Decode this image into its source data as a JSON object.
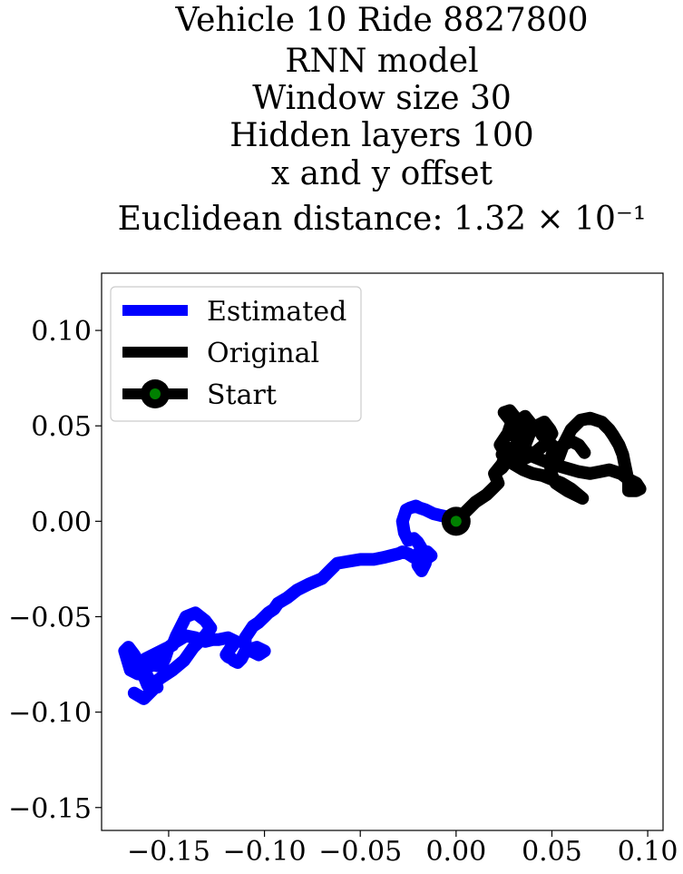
{
  "chart_data": {
    "type": "line",
    "title_lines": [
      "Vehicle 10 Ride 8827800",
      "RNN model",
      "Window size 30",
      "Hidden layers 100",
      "x and y offset",
      "Euclidean distance: 1.32 × 10⁻¹"
    ],
    "xlabel": "",
    "ylabel": "",
    "xlim": [
      -0.185,
      0.108
    ],
    "ylim": [
      -0.162,
      0.13
    ],
    "xticks": [
      -0.15,
      -0.1,
      -0.05,
      0.0,
      0.05,
      0.1
    ],
    "xtick_labels": [
      "−0.15",
      "−0.10",
      "−0.05",
      "0.00",
      "0.05",
      "0.10"
    ],
    "yticks": [
      0.1,
      0.05,
      0.0,
      -0.05,
      -0.1,
      -0.15
    ],
    "ytick_labels": [
      "0.10",
      "0.05",
      "0.00",
      "−0.05",
      "−0.10",
      "−0.15"
    ],
    "grid": false,
    "legend": {
      "placement": "upper-left",
      "entries": [
        {
          "label": "Estimated",
          "color": "#0000ff"
        },
        {
          "label": "Original",
          "color": "#000000"
        },
        {
          "label": "Start",
          "color": "#000000",
          "marker_color": "#008000"
        }
      ]
    },
    "series": [
      {
        "name": "Estimated",
        "color": "#0000ff",
        "x": [
          0.0,
          -0.003,
          -0.008,
          -0.012,
          -0.016,
          -0.019,
          -0.021,
          -0.024,
          -0.026,
          -0.028,
          -0.027,
          -0.025,
          -0.022,
          -0.02,
          -0.017,
          -0.016,
          -0.018,
          -0.02,
          -0.016,
          -0.013,
          -0.015,
          -0.02,
          -0.022,
          -0.025,
          -0.028,
          -0.03,
          -0.034,
          -0.038,
          -0.043,
          -0.05,
          -0.056,
          -0.062,
          -0.065,
          -0.07,
          -0.077,
          -0.083,
          -0.088,
          -0.093,
          -0.095,
          -0.098,
          -0.1,
          -0.103,
          -0.106,
          -0.108,
          -0.11,
          -0.11,
          -0.107,
          -0.103,
          -0.1,
          -0.104,
          -0.11,
          -0.112,
          -0.114,
          -0.116,
          -0.117,
          -0.119,
          -0.12,
          -0.118,
          -0.115,
          -0.119,
          -0.124,
          -0.127,
          -0.131,
          -0.136,
          -0.141,
          -0.146,
          -0.15,
          -0.152,
          -0.154,
          -0.16,
          -0.163,
          -0.161,
          -0.156,
          -0.158,
          -0.154,
          -0.148,
          -0.142,
          -0.137,
          -0.131,
          -0.128,
          -0.131,
          -0.136,
          -0.141,
          -0.146,
          -0.148,
          -0.152,
          -0.156,
          -0.162,
          -0.165,
          -0.166,
          -0.17,
          -0.173,
          -0.171,
          -0.168,
          -0.165,
          -0.16,
          -0.158,
          -0.163,
          -0.168
        ],
        "y": [
          0.0,
          0.002,
          0.003,
          0.004,
          0.006,
          0.007,
          0.008,
          0.007,
          0.006,
          0.0,
          -0.006,
          -0.01,
          -0.009,
          -0.011,
          -0.016,
          -0.022,
          -0.026,
          -0.023,
          -0.02,
          -0.018,
          -0.016,
          -0.017,
          -0.019,
          -0.017,
          -0.016,
          -0.017,
          -0.018,
          -0.019,
          -0.02,
          -0.02,
          -0.021,
          -0.022,
          -0.025,
          -0.03,
          -0.033,
          -0.036,
          -0.04,
          -0.043,
          -0.046,
          -0.048,
          -0.05,
          -0.053,
          -0.055,
          -0.058,
          -0.061,
          -0.065,
          -0.068,
          -0.07,
          -0.068,
          -0.066,
          -0.068,
          -0.072,
          -0.074,
          -0.073,
          -0.072,
          -0.071,
          -0.07,
          -0.067,
          -0.063,
          -0.061,
          -0.062,
          -0.062,
          -0.063,
          -0.061,
          -0.06,
          -0.063,
          -0.066,
          -0.072,
          -0.076,
          -0.075,
          -0.081,
          -0.086,
          -0.087,
          -0.085,
          -0.082,
          -0.078,
          -0.073,
          -0.066,
          -0.06,
          -0.056,
          -0.052,
          -0.048,
          -0.05,
          -0.06,
          -0.065,
          -0.067,
          -0.069,
          -0.072,
          -0.076,
          -0.08,
          -0.078,
          -0.068,
          -0.066,
          -0.07,
          -0.075,
          -0.083,
          -0.088,
          -0.093,
          -0.09
        ]
      },
      {
        "name": "Original",
        "color": "#000000",
        "x": [
          0.0,
          0.005,
          0.01,
          0.016,
          0.019,
          0.022,
          0.02,
          0.024,
          0.026,
          0.023,
          0.027,
          0.029,
          0.025,
          0.028,
          0.032,
          0.035,
          0.031,
          0.03,
          0.036,
          0.04,
          0.038,
          0.033,
          0.03,
          0.034,
          0.04,
          0.046,
          0.05,
          0.049,
          0.046,
          0.042,
          0.045,
          0.05,
          0.052,
          0.053,
          0.056,
          0.06,
          0.065,
          0.07,
          0.076,
          0.08,
          0.082,
          0.085,
          0.087,
          0.088,
          0.089,
          0.09,
          0.09,
          0.094,
          0.096,
          0.094,
          0.09,
          0.086,
          0.08,
          0.075,
          0.07,
          0.064,
          0.057,
          0.05,
          0.045,
          0.04,
          0.037,
          0.036,
          0.038,
          0.035,
          0.03,
          0.025,
          0.02,
          0.024,
          0.027,
          0.03,
          0.034,
          0.028,
          0.024,
          0.026,
          0.03,
          0.035,
          0.04,
          0.045,
          0.05,
          0.055,
          0.06,
          0.066,
          0.062,
          0.058,
          0.055,
          0.052,
          0.05,
          0.049,
          0.05,
          0.053,
          0.056,
          0.06,
          0.064,
          0.067
        ],
        "y": [
          0.0,
          0.005,
          0.01,
          0.014,
          0.017,
          0.02,
          0.025,
          0.03,
          0.035,
          0.04,
          0.046,
          0.052,
          0.057,
          0.058,
          0.053,
          0.048,
          0.044,
          0.05,
          0.055,
          0.05,
          0.045,
          0.04,
          0.036,
          0.032,
          0.035,
          0.04,
          0.046,
          0.048,
          0.052,
          0.05,
          0.045,
          0.04,
          0.036,
          0.032,
          0.04,
          0.048,
          0.053,
          0.054,
          0.052,
          0.048,
          0.045,
          0.04,
          0.035,
          0.03,
          0.025,
          0.02,
          0.016,
          0.016,
          0.017,
          0.02,
          0.022,
          0.025,
          0.027,
          0.026,
          0.025,
          0.026,
          0.028,
          0.03,
          0.032,
          0.034,
          0.036,
          0.04,
          0.045,
          0.04,
          0.035,
          0.03,
          0.025,
          0.028,
          0.032,
          0.036,
          0.04,
          0.038,
          0.035,
          0.033,
          0.03,
          0.027,
          0.025,
          0.024,
          0.022,
          0.02,
          0.017,
          0.012,
          0.014,
          0.016,
          0.018,
          0.02,
          0.024,
          0.03,
          0.035,
          0.038,
          0.04,
          0.042,
          0.04,
          0.036
        ]
      }
    ],
    "start_point": {
      "name": "Start",
      "x": 0.0,
      "y": 0.0,
      "marker_edge_color": "#000000",
      "marker_face_color": "#008000"
    }
  }
}
